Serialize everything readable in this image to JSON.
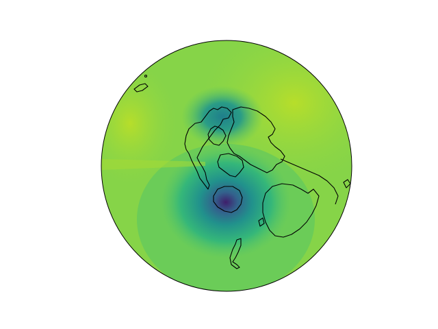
{
  "map": {
    "type": "orthographic globe filled contour",
    "colormap": "viridis",
    "colors": {
      "globe_base": "#78cc52",
      "high_field": "#a6db35",
      "mid_field": "#56c566",
      "low_field": "#2a9c86",
      "min_field": "#3e1e6b",
      "coastline": "#000000",
      "globe_outline": "#000000",
      "background": "#ffffff"
    }
  }
}
